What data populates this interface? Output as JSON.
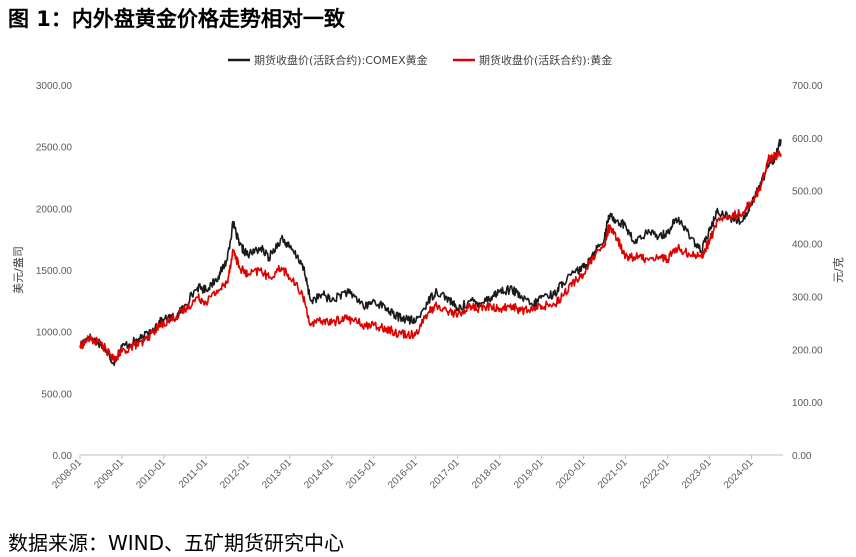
{
  "figure": {
    "title": "图 1：内外盘黄金价格走势相对一致",
    "source": "数据来源：WIND、五矿期货研究中心"
  },
  "chart_data": {
    "type": "line",
    "legend": [
      {
        "name": "期货收盘价(活跃合约):COMEX黄金",
        "color": "#1a1a1a"
      },
      {
        "name": "期货收盘价(活跃合约):黄金",
        "color": "#e00000"
      }
    ],
    "legend_position": "top-center",
    "y_left": {
      "label": "美元/盎司",
      "range": [
        0,
        3000
      ],
      "ticks": [
        "0.00",
        "500.00",
        "1000.00",
        "1500.00",
        "2000.00",
        "2500.00",
        "3000.00"
      ]
    },
    "y_right": {
      "label": "元/克",
      "range": [
        0,
        700
      ],
      "ticks": [
        "0.00",
        "100.00",
        "200.00",
        "300.00",
        "400.00",
        "500.00",
        "600.00",
        "700.00"
      ]
    },
    "x": {
      "range": [
        2008.0,
        2024.75
      ],
      "tick_values": [
        2008,
        2009,
        2010,
        2011,
        2012,
        2013,
        2014,
        2015,
        2016,
        2017,
        2018,
        2019,
        2020,
        2021,
        2022,
        2023,
        2024
      ],
      "tick_labels": [
        "2008-01",
        "2009-01",
        "2010-01",
        "2011-01",
        "2012-01",
        "2013-01",
        "2014-01",
        "2015-01",
        "2016-01",
        "2017-01",
        "2018-01",
        "2019-01",
        "2020-01",
        "2021-01",
        "2022-01",
        "2023-01",
        "2024-01"
      ]
    },
    "series": [
      {
        "name": "期货收盘价(活跃合约):COMEX黄金",
        "axis": "left",
        "x": [
          2008.0,
          2008.2,
          2008.5,
          2008.8,
          2009.0,
          2009.3,
          2009.5,
          2009.8,
          2010.0,
          2010.3,
          2010.5,
          2010.8,
          2011.0,
          2011.3,
          2011.5,
          2011.65,
          2011.8,
          2012.0,
          2012.3,
          2012.5,
          2012.8,
          2013.0,
          2013.3,
          2013.5,
          2013.8,
          2014.0,
          2014.3,
          2014.5,
          2014.8,
          2015.0,
          2015.3,
          2015.5,
          2015.8,
          2016.0,
          2016.3,
          2016.5,
          2016.8,
          2017.0,
          2017.3,
          2017.5,
          2017.8,
          2018.0,
          2018.3,
          2018.5,
          2018.8,
          2019.0,
          2019.3,
          2019.5,
          2019.8,
          2020.0,
          2020.2,
          2020.5,
          2020.6,
          2020.8,
          2021.0,
          2021.2,
          2021.5,
          2021.8,
          2022.0,
          2022.2,
          2022.5,
          2022.8,
          2023.0,
          2023.2,
          2023.5,
          2023.8,
          2024.0,
          2024.2,
          2024.4,
          2024.55,
          2024.7
        ],
        "y": [
          890,
          960,
          900,
          750,
          880,
          920,
          950,
          1050,
          1100,
          1120,
          1220,
          1360,
          1340,
          1450,
          1580,
          1880,
          1700,
          1620,
          1680,
          1600,
          1760,
          1680,
          1550,
          1250,
          1300,
          1250,
          1320,
          1300,
          1200,
          1250,
          1190,
          1130,
          1100,
          1080,
          1250,
          1330,
          1260,
          1180,
          1250,
          1230,
          1280,
          1330,
          1340,
          1280,
          1210,
          1290,
          1300,
          1400,
          1480,
          1520,
          1620,
          1760,
          1940,
          1900,
          1860,
          1720,
          1800,
          1780,
          1800,
          1920,
          1800,
          1650,
          1820,
          1980,
          1920,
          1900,
          2050,
          2180,
          2350,
          2400,
          2560
        ]
      },
      {
        "name": "期货收盘价(活跃合约):黄金",
        "axis": "right",
        "x": [
          2008.0,
          2008.2,
          2008.5,
          2008.8,
          2009.0,
          2009.3,
          2009.5,
          2009.8,
          2010.0,
          2010.3,
          2010.5,
          2010.8,
          2011.0,
          2011.3,
          2011.5,
          2011.65,
          2011.8,
          2012.0,
          2012.3,
          2012.5,
          2012.8,
          2013.0,
          2013.3,
          2013.5,
          2013.8,
          2014.0,
          2014.3,
          2014.5,
          2014.8,
          2015.0,
          2015.3,
          2015.5,
          2015.8,
          2016.0,
          2016.3,
          2016.5,
          2016.8,
          2017.0,
          2017.3,
          2017.5,
          2017.8,
          2018.0,
          2018.3,
          2018.5,
          2018.8,
          2019.0,
          2019.3,
          2019.5,
          2019.8,
          2020.0,
          2020.2,
          2020.5,
          2020.6,
          2020.8,
          2021.0,
          2021.2,
          2021.5,
          2021.8,
          2022.0,
          2022.2,
          2022.5,
          2022.8,
          2023.0,
          2023.2,
          2023.5,
          2023.8,
          2024.0,
          2024.2,
          2024.4,
          2024.55,
          2024.7
        ],
        "y": [
          205,
          220,
          212,
          180,
          195,
          208,
          212,
          238,
          250,
          262,
          275,
          298,
          290,
          312,
          325,
          388,
          355,
          340,
          350,
          335,
          355,
          335,
          305,
          245,
          255,
          250,
          260,
          255,
          245,
          245,
          240,
          232,
          228,
          230,
          270,
          282,
          272,
          265,
          282,
          277,
          281,
          276,
          282,
          273,
          275,
          282,
          285,
          302,
          330,
          342,
          370,
          395,
          430,
          410,
          375,
          375,
          372,
          375,
          370,
          392,
          382,
          375,
          405,
          445,
          450,
          460,
          480,
          502,
          560,
          565,
          570
        ]
      }
    ]
  }
}
